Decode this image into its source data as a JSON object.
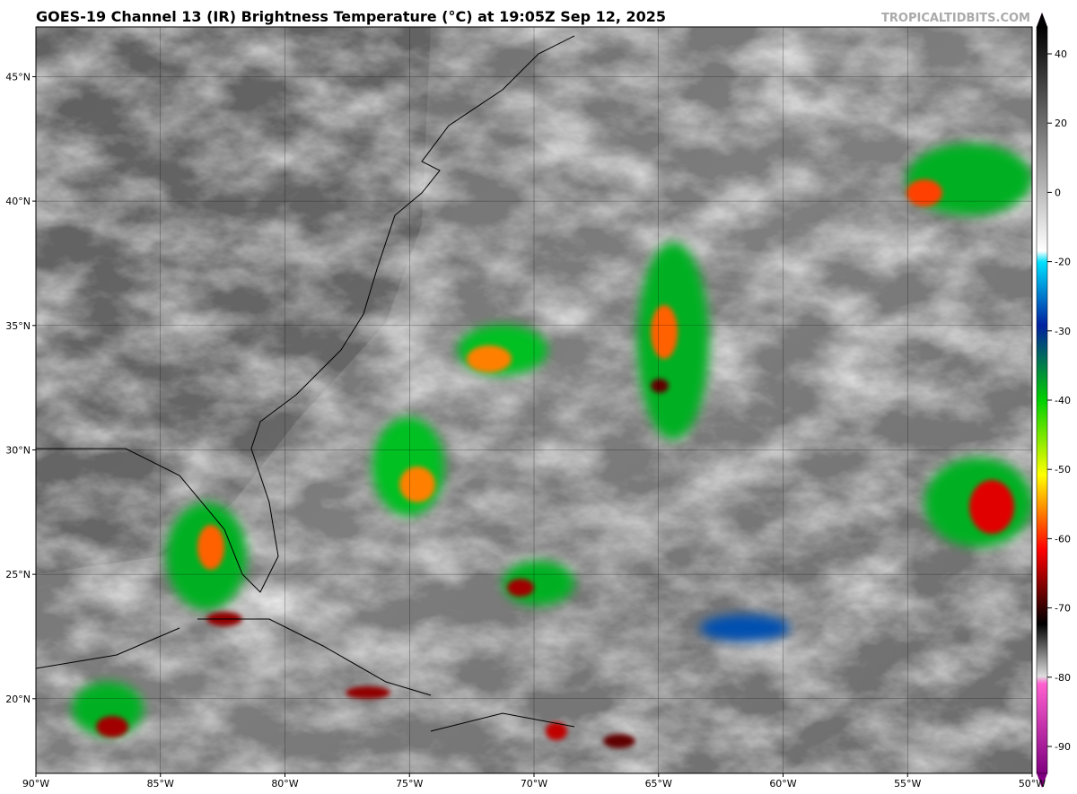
{
  "title": "GOES-19 Channel 13 (IR) Brightness Temperature (°C) at 19:05Z Sep 12, 2025",
  "watermark": "TROPICALTIDBITS.COM",
  "map": {
    "xlim": [
      -90,
      -50
    ],
    "ylim": [
      17,
      47
    ],
    "xticks": [
      {
        "value": -90,
        "label": "90°W"
      },
      {
        "value": -85,
        "label": "85°W"
      },
      {
        "value": -80,
        "label": "80°W"
      },
      {
        "value": -75,
        "label": "75°W"
      },
      {
        "value": -70,
        "label": "70°W"
      },
      {
        "value": -65,
        "label": "65°W"
      },
      {
        "value": -60,
        "label": "60°W"
      },
      {
        "value": -55,
        "label": "55°W"
      },
      {
        "value": -50,
        "label": "50°W"
      }
    ],
    "yticks": [
      {
        "value": 20,
        "label": "20°N"
      },
      {
        "value": 25,
        "label": "25°N"
      },
      {
        "value": 30,
        "label": "30°N"
      },
      {
        "value": 35,
        "label": "35°N"
      },
      {
        "value": 40,
        "label": "40°N"
      },
      {
        "value": 45,
        "label": "45°N"
      }
    ],
    "grid": true
  },
  "colorbar": {
    "ticks": [
      40,
      20,
      0,
      -20,
      -30,
      -40,
      -50,
      -60,
      -70,
      -80,
      -90
    ]
  }
}
